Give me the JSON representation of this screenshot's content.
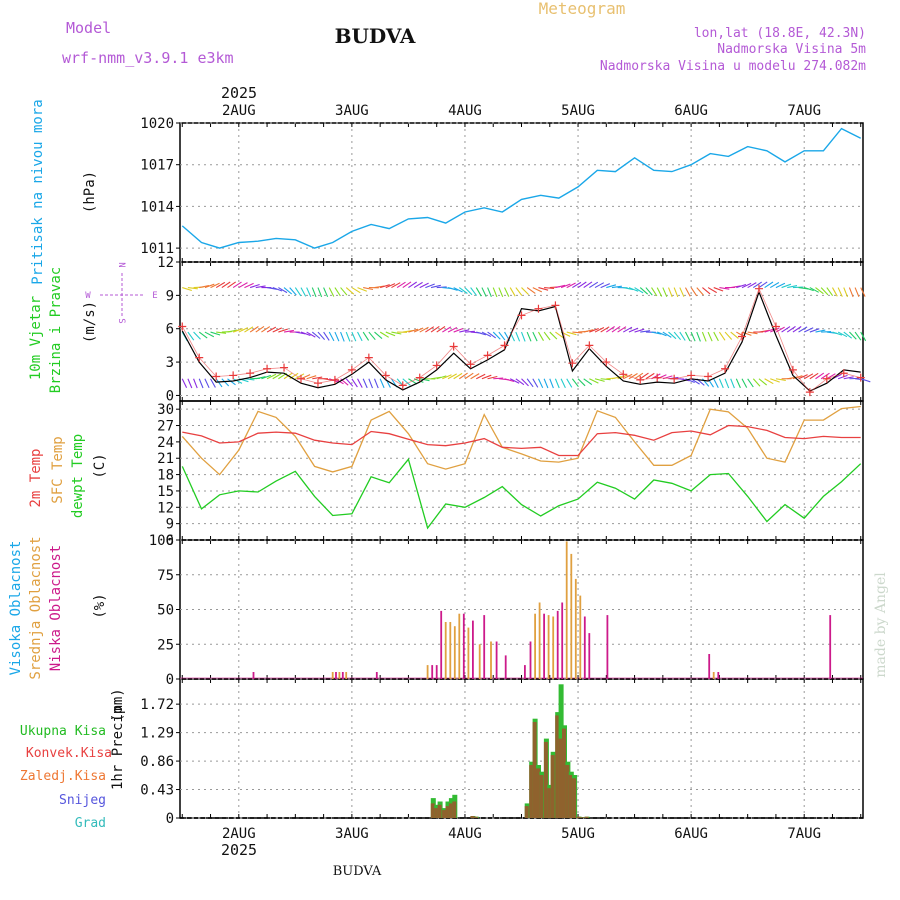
{
  "header": {
    "model_label": "Model",
    "model_name": "wrf-nmm_v3.9.1 e3km",
    "station": "BUDVA",
    "product": "Meteogram",
    "lonlat": "lon,lat (18.8E, 42.3N)",
    "elevation": "Nadmorska Visina 5m",
    "model_elevation": "Nadmorska Visina u modelu 274.082m",
    "footer_station": "BUDVA",
    "credit": "made by Angel"
  },
  "time_axis": {
    "year": "2025",
    "days": [
      "2AUG",
      "3AUG",
      "4AUG",
      "5AUG",
      "6AUG",
      "7AUG"
    ]
  },
  "colors": {
    "pressure": "#1aa7e8",
    "wind_speed": "#000000",
    "gust": "#e83a3a",
    "t2m": "#e84040",
    "sfc": "#e0a040",
    "dewpt": "#22cc22",
    "high_cloud": "#1aa7e8",
    "mid_cloud": "#e0a040",
    "low_cloud": "#cc1a8a",
    "total_precip": "#33bb33",
    "conv_precip": "#e84040",
    "frozen": "#ee7733",
    "snow": "#5555dd",
    "hail": "#33bbbb",
    "title_purple": "#b45ad6",
    "meteogram_orange": "#e8c070"
  },
  "chart_data": [
    {
      "type": "line",
      "name": "pressure-panel",
      "ylabel_main": "Pritisak na nivou mora",
      "ylabel_unit": "(hPa)",
      "ylim": [
        1010,
        1020
      ],
      "yticks": [
        1011,
        1014,
        1017,
        1020
      ],
      "x_days": [
        0,
        0.17,
        0.33,
        0.5,
        0.67,
        0.83,
        1.0,
        1.17,
        1.33,
        1.5,
        1.67,
        1.83,
        2.0,
        2.17,
        2.33,
        2.5,
        2.67,
        2.83,
        3.0,
        3.17,
        3.33,
        3.5,
        3.67,
        3.83,
        4.0,
        4.17,
        4.33,
        4.5,
        4.67,
        4.83,
        5.0,
        5.17,
        5.33,
        5.5,
        5.67,
        5.83,
        6.0
      ],
      "values": [
        1012.6,
        1011.4,
        1011.0,
        1011.4,
        1011.5,
        1011.7,
        1011.6,
        1011.0,
        1011.4,
        1012.2,
        1012.7,
        1012.4,
        1013.1,
        1013.2,
        1012.8,
        1013.6,
        1013.9,
        1013.6,
        1014.5,
        1014.8,
        1014.6,
        1015.4,
        1016.6,
        1016.5,
        1017.5,
        1016.6,
        1016.5,
        1017.0,
        1017.8,
        1017.6,
        1018.3,
        1018.0,
        1017.2,
        1018.0,
        1018.0,
        1019.6,
        1018.9
      ]
    },
    {
      "type": "line",
      "name": "wind-panel",
      "ylabel_main": "10m Vjetar",
      "ylabel_sub": "Brzina i Pravac",
      "ylabel_unit": "(m/s)",
      "compass": {
        "n": "N",
        "s": "S",
        "w": "W",
        "e": "E"
      },
      "ylim": [
        -0.5,
        12
      ],
      "yticks": [
        0,
        3,
        6,
        9,
        12
      ],
      "barb_levels": [
        1.5,
        5.7,
        9.7
      ],
      "x_days": [
        0,
        0.15,
        0.3,
        0.45,
        0.6,
        0.75,
        0.9,
        1.05,
        1.2,
        1.35,
        1.5,
        1.65,
        1.8,
        1.95,
        2.1,
        2.25,
        2.4,
        2.55,
        2.7,
        2.85,
        3.0,
        3.15,
        3.3,
        3.45,
        3.6,
        3.75,
        3.9,
        4.05,
        4.2,
        4.35,
        4.5,
        4.65,
        4.8,
        4.95,
        5.1,
        5.25,
        5.4,
        5.55,
        5.7,
        5.85,
        6.0
      ],
      "speed": [
        5.8,
        3.0,
        1.2,
        1.3,
        1.6,
        2.1,
        2.0,
        1.1,
        0.7,
        1.0,
        1.9,
        3.0,
        1.4,
        0.5,
        1.2,
        2.3,
        3.8,
        2.4,
        3.2,
        4.1,
        7.8,
        7.6,
        8.0,
        2.2,
        4.2,
        2.6,
        1.3,
        1.0,
        1.2,
        1.1,
        1.5,
        1.3,
        2.0,
        4.8,
        9.3,
        5.4,
        1.8,
        0.4,
        1.1,
        2.3,
        2.1
      ],
      "gust": [
        6.2,
        3.4,
        1.7,
        1.8,
        2.0,
        2.4,
        2.5,
        1.5,
        1.1,
        1.4,
        2.3,
        3.4,
        1.8,
        0.9,
        1.6,
        2.7,
        4.4,
        2.8,
        3.6,
        4.5,
        7.2,
        7.8,
        8.1,
        2.9,
        4.5,
        3.0,
        1.9,
        1.4,
        1.6,
        1.5,
        1.8,
        1.7,
        2.4,
        5.3,
        9.6,
        6.2,
        2.3,
        0.3,
        1.5,
        2.0,
        1.6
      ]
    },
    {
      "type": "line",
      "name": "temperature-panel",
      "ylabel_main": "2m Temp",
      "ylabel_sfc": "SFC Temp",
      "ylabel_dew": "dewpt Temp",
      "ylabel_unit": "(C)",
      "ylim": [
        6,
        31.5
      ],
      "yticks": [
        6,
        9,
        12,
        15,
        18,
        21,
        24,
        27,
        30
      ],
      "x_days": [
        0,
        0.17,
        0.33,
        0.5,
        0.67,
        0.83,
        1.0,
        1.17,
        1.33,
        1.5,
        1.67,
        1.83,
        2.0,
        2.17,
        2.33,
        2.5,
        2.67,
        2.83,
        3.0,
        3.17,
        3.33,
        3.5,
        3.67,
        3.83,
        4.0,
        4.17,
        4.33,
        4.5,
        4.67,
        4.83,
        5.0,
        5.17,
        5.33,
        5.5,
        5.67,
        5.83,
        6.0
      ],
      "t2m": [
        25.8,
        25.1,
        23.8,
        24.0,
        25.6,
        25.8,
        25.6,
        24.3,
        23.8,
        23.5,
        25.9,
        25.5,
        24.5,
        23.5,
        23.3,
        23.8,
        24.6,
        23.0,
        22.8,
        23.0,
        21.5,
        21.5,
        25.5,
        25.7,
        25.2,
        24.3,
        25.7,
        26.0,
        25.3,
        27.0,
        26.8,
        26.1,
        24.8,
        24.6,
        25.0,
        24.8,
        24.8
      ],
      "sfc": [
        25.0,
        21.0,
        18.0,
        22.5,
        29.6,
        28.5,
        25.0,
        19.5,
        18.5,
        19.5,
        28.0,
        29.6,
        25.5,
        20.0,
        19.0,
        20.0,
        29.0,
        23.0,
        21.8,
        20.5,
        20.3,
        21.0,
        29.7,
        28.5,
        24.0,
        19.7,
        19.7,
        21.5,
        30.0,
        29.5,
        26.5,
        21.0,
        20.3,
        28.0,
        28.0,
        30.1,
        30.5
      ],
      "dewpt": [
        19.5,
        11.7,
        14.3,
        15.0,
        14.8,
        16.8,
        18.6,
        14.0,
        10.5,
        10.8,
        17.6,
        16.5,
        20.8,
        8.2,
        12.6,
        12.0,
        13.8,
        15.8,
        12.5,
        10.4,
        12.3,
        13.5,
        16.6,
        15.5,
        13.5,
        17.0,
        16.4,
        15.0,
        18.0,
        18.2,
        14.0,
        9.4,
        12.5,
        10.0,
        14.0,
        16.7,
        20.0
      ]
    },
    {
      "type": "bar",
      "name": "cloud-panel",
      "ylabel_high": "Visoka Oblacnost",
      "ylabel_mid": "Srednja Oblacnost",
      "ylabel_low": "Niska Oblacnost",
      "ylabel_unit": "(%)",
      "ylim": [
        0,
        100
      ],
      "yticks": [
        0,
        25,
        50,
        75,
        100
      ],
      "bars": [
        {
          "x": 0.63,
          "layer": "low",
          "value": 5
        },
        {
          "x": 1.33,
          "layer": "mid",
          "value": 5
        },
        {
          "x": 1.36,
          "layer": "low",
          "value": 5
        },
        {
          "x": 1.39,
          "layer": "mid",
          "value": 5
        },
        {
          "x": 1.42,
          "layer": "low",
          "value": 5
        },
        {
          "x": 1.45,
          "layer": "mid",
          "value": 5
        },
        {
          "x": 1.72,
          "layer": "low",
          "value": 5
        },
        {
          "x": 2.17,
          "layer": "mid",
          "value": 10
        },
        {
          "x": 2.21,
          "layer": "low",
          "value": 10
        },
        {
          "x": 2.25,
          "layer": "low",
          "value": 10
        },
        {
          "x": 2.29,
          "layer": "low",
          "value": 49
        },
        {
          "x": 2.33,
          "layer": "mid",
          "value": 41
        },
        {
          "x": 2.37,
          "layer": "mid",
          "value": 41
        },
        {
          "x": 2.41,
          "layer": "mid",
          "value": 38
        },
        {
          "x": 2.45,
          "layer": "mid",
          "value": 47
        },
        {
          "x": 2.49,
          "layer": "low",
          "value": 47
        },
        {
          "x": 2.53,
          "layer": "mid",
          "value": 37
        },
        {
          "x": 2.57,
          "layer": "low",
          "value": 42
        },
        {
          "x": 2.63,
          "layer": "mid",
          "value": 25
        },
        {
          "x": 2.67,
          "layer": "low",
          "value": 46
        },
        {
          "x": 2.73,
          "layer": "mid",
          "value": 27
        },
        {
          "x": 2.78,
          "layer": "low",
          "value": 27
        },
        {
          "x": 2.86,
          "layer": "low",
          "value": 17
        },
        {
          "x": 3.03,
          "layer": "low",
          "value": 10
        },
        {
          "x": 3.08,
          "layer": "low",
          "value": 27
        },
        {
          "x": 3.12,
          "layer": "mid",
          "value": 47
        },
        {
          "x": 3.16,
          "layer": "mid",
          "value": 55
        },
        {
          "x": 3.2,
          "layer": "low",
          "value": 47
        },
        {
          "x": 3.24,
          "layer": "mid",
          "value": 46
        },
        {
          "x": 3.28,
          "layer": "mid",
          "value": 45
        },
        {
          "x": 3.32,
          "layer": "low",
          "value": 49
        },
        {
          "x": 3.36,
          "layer": "low",
          "value": 55
        },
        {
          "x": 3.4,
          "layer": "mid",
          "value": 99
        },
        {
          "x": 3.44,
          "layer": "mid",
          "value": 90
        },
        {
          "x": 3.48,
          "layer": "mid",
          "value": 72
        },
        {
          "x": 3.52,
          "layer": "mid",
          "value": 60
        },
        {
          "x": 3.56,
          "layer": "low",
          "value": 45
        },
        {
          "x": 3.6,
          "layer": "low",
          "value": 33
        },
        {
          "x": 3.76,
          "layer": "low",
          "value": 46
        },
        {
          "x": 4.66,
          "layer": "low",
          "value": 18
        },
        {
          "x": 4.7,
          "layer": "mid",
          "value": 5
        },
        {
          "x": 4.74,
          "layer": "low",
          "value": 5
        },
        {
          "x": 5.73,
          "layer": "low",
          "value": 46
        }
      ]
    },
    {
      "type": "bar",
      "name": "precip-panel",
      "ylabel_main": "1hr Precip",
      "ylabel_unit": "(mm)",
      "ylim": [
        0,
        2.1
      ],
      "yticks": [
        0,
        0.43,
        0.86,
        1.29,
        1.72
      ],
      "ytick_labels": [
        "0",
        "0.43",
        "0.86",
        "1.29",
        "1.72"
      ],
      "legend": [
        "Ukupna Kisa",
        "Konvek.Kisa",
        "Zaledj.Kisa",
        "Snijeg",
        "Grad"
      ],
      "x_days": [
        2.22,
        2.25,
        2.28,
        2.32,
        2.35,
        2.38,
        2.41,
        2.57,
        2.6,
        3.05,
        3.09,
        3.12,
        3.15,
        3.18,
        3.22,
        3.25,
        3.28,
        3.32,
        3.35,
        3.38,
        3.41,
        3.44,
        3.47,
        3.51,
        3.54,
        3.58
      ],
      "total": [
        0.3,
        0.2,
        0.25,
        0.15,
        0.25,
        0.3,
        0.35,
        0.03,
        0.02,
        0.22,
        0.85,
        1.5,
        0.8,
        0.7,
        1.2,
        0.5,
        1.0,
        1.6,
        2.02,
        1.4,
        0.85,
        0.7,
        0.65,
        0.02,
        0.01,
        0.02
      ],
      "conv": [
        0.22,
        0.15,
        0.2,
        0.12,
        0.18,
        0.22,
        0.25,
        0.03,
        0.02,
        0.18,
        0.8,
        1.45,
        0.75,
        0.65,
        1.15,
        0.45,
        0.95,
        1.55,
        1.2,
        1.35,
        0.8,
        0.65,
        0.6,
        0.02,
        0.01,
        0.02
      ]
    }
  ]
}
